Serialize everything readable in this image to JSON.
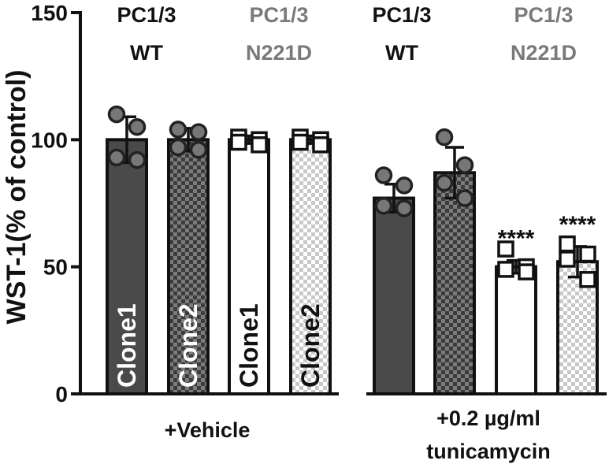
{
  "chart_data": {
    "type": "bar",
    "ylabel": "WST-1(% of control)",
    "ylim": [
      0,
      150
    ],
    "yticks": [
      "0",
      "50",
      "100",
      "150"
    ],
    "grid": false,
    "column_headers": [
      {
        "line1": "PC1/3",
        "line2": "WT",
        "color": "#111111"
      },
      {
        "line1": "PC1/3",
        "line2": "N221D",
        "color": "#7a7a7a"
      },
      {
        "line1": "PC1/3",
        "line2": "WT",
        "color": "#111111"
      },
      {
        "line1": "PC1/3",
        "line2": "N221D",
        "color": "#7a7a7a"
      }
    ],
    "groups": [
      {
        "label_lines": [
          "+Vehicle"
        ]
      },
      {
        "label_lines": [
          "+0.2 µg/ml",
          "tunicamycin"
        ]
      }
    ],
    "bars": [
      {
        "group": 0,
        "label": "Clone1",
        "value": 100,
        "sd": 9,
        "fill": "dark",
        "points": [
          110,
          105,
          93,
          92
        ],
        "marker": "circle"
      },
      {
        "group": 0,
        "label": "Clone2",
        "value": 100,
        "sd": 4.5,
        "fill": "dark-checker",
        "points": [
          104,
          103,
          97,
          96
        ],
        "marker": "circle"
      },
      {
        "group": 0,
        "label": "Clone1",
        "value": 100,
        "sd": 1.5,
        "fill": "white",
        "points": [
          101,
          100,
          99,
          98
        ],
        "marker": "square"
      },
      {
        "group": 0,
        "label": "Clone2",
        "value": 100,
        "sd": 1.5,
        "fill": "light-checker",
        "points": [
          101,
          100,
          99,
          98
        ],
        "marker": "square"
      },
      {
        "group": 1,
        "label": "",
        "value": 77,
        "sd": 5.5,
        "fill": "dark",
        "points": [
          86,
          82,
          74,
          73
        ],
        "marker": "circle"
      },
      {
        "group": 1,
        "label": "",
        "value": 87,
        "sd": 10,
        "fill": "dark-checker",
        "points": [
          101,
          90,
          83,
          77
        ],
        "marker": "circle"
      },
      {
        "group": 1,
        "label": "",
        "value": 50,
        "sd": 2.5,
        "fill": "white",
        "points": [
          57,
          50,
          49,
          48
        ],
        "marker": "square",
        "annotation": "****"
      },
      {
        "group": 1,
        "label": "",
        "value": 52,
        "sd": 6,
        "fill": "light-checker",
        "points": [
          59,
          55,
          53,
          45
        ],
        "marker": "square",
        "annotation": "****"
      }
    ]
  }
}
